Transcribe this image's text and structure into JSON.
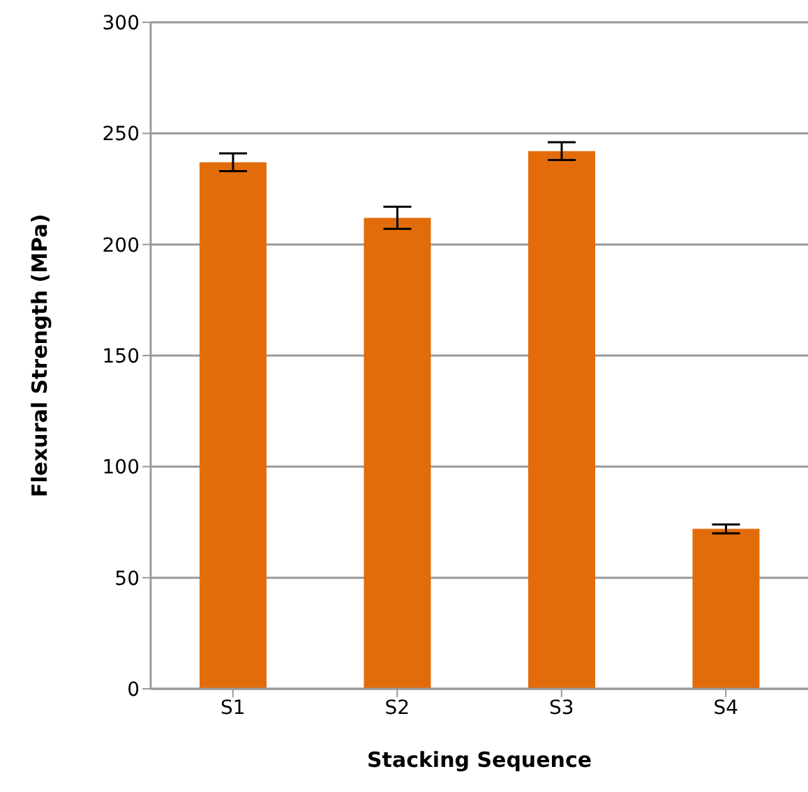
{
  "chart_data": {
    "type": "bar",
    "xlabel": "Stacking Sequence",
    "ylabel": "Flexural Strength (MPa)",
    "categories": [
      "S1",
      "S2",
      "S3",
      "S4"
    ],
    "values": [
      237,
      212,
      242,
      72
    ],
    "errors": [
      4,
      5,
      4,
      2
    ],
    "color": "#e36c0a",
    "ylim": [
      0,
      300
    ],
    "yticks": [
      0,
      50,
      100,
      150,
      200,
      250,
      300
    ],
    "grid": "y"
  }
}
